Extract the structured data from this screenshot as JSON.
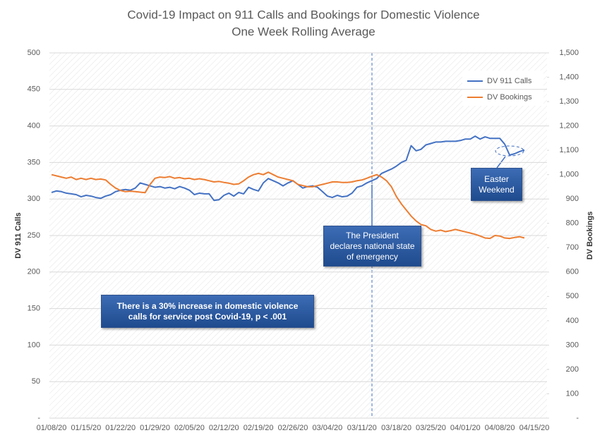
{
  "chart_data": {
    "type": "line",
    "title": "Covid-19 Impact on 911 Calls and Bookings for Domestic Violence",
    "subtitle": "One Week Rolling Average",
    "y_label": "DV 911 Calls",
    "y2_label": "DV Bookings",
    "categories": [
      "01/08/20",
      null,
      null,
      null,
      null,
      null,
      null,
      "01/15/20",
      null,
      null,
      null,
      null,
      null,
      null,
      "01/22/20",
      null,
      null,
      null,
      null,
      null,
      null,
      "01/29/20",
      null,
      null,
      null,
      null,
      null,
      null,
      "02/05/20",
      null,
      null,
      null,
      null,
      null,
      null,
      "02/12/20",
      null,
      null,
      null,
      null,
      null,
      null,
      "02/19/20",
      null,
      null,
      null,
      null,
      null,
      null,
      "02/26/20",
      null,
      null,
      null,
      null,
      null,
      null,
      "03/04/20",
      null,
      null,
      null,
      null,
      null,
      null,
      "03/11/20",
      null,
      null,
      null,
      null,
      null,
      null,
      "03/18/20",
      null,
      null,
      null,
      null,
      null,
      null,
      "03/25/20",
      null,
      null,
      null,
      null,
      null,
      null,
      "04/01/20",
      null,
      null,
      null,
      null,
      null,
      null,
      "04/08/20",
      null,
      null,
      null,
      null,
      null,
      null,
      "04/15/20"
    ],
    "series": [
      {
        "name": "DV 911 Calls",
        "color": "#4472c4",
        "axis": "y",
        "values": [
          309,
          311,
          310,
          308,
          307,
          306,
          303,
          305,
          304,
          302,
          301,
          304,
          306,
          310,
          312,
          313,
          312,
          315,
          322,
          320,
          318,
          316,
          317,
          315,
          316,
          314,
          317,
          315,
          312,
          306,
          308,
          307,
          307,
          298,
          299,
          305,
          308,
          304,
          309,
          307,
          316,
          313,
          311,
          322,
          328,
          325,
          322,
          318,
          322,
          325,
          320,
          315,
          317,
          318,
          316,
          310,
          304,
          302,
          305,
          303,
          304,
          308,
          316,
          318,
          322,
          325,
          328,
          335,
          338,
          341,
          345,
          350,
          353,
          373,
          366,
          368,
          374,
          376,
          378,
          378,
          379,
          379,
          379,
          380,
          382,
          382,
          386,
          382,
          385,
          383,
          383,
          383,
          375,
          360,
          362,
          365,
          367,
          null,
          null
        ]
      },
      {
        "name": "DV Bookings",
        "color": "#ed7d31",
        "axis": "y2",
        "values": [
          1000,
          995,
          990,
          985,
          990,
          980,
          985,
          980,
          985,
          980,
          982,
          978,
          960,
          945,
          935,
          930,
          932,
          930,
          928,
          926,
          960,
          985,
          990,
          988,
          992,
          985,
          988,
          983,
          985,
          980,
          983,
          980,
          975,
          970,
          972,
          968,
          965,
          960,
          962,
          975,
          990,
          1000,
          1005,
          1000,
          1010,
          1000,
          990,
          985,
          980,
          975,
          960,
          955,
          950,
          950,
          955,
          960,
          965,
          970,
          970,
          968,
          968,
          970,
          975,
          978,
          985,
          993,
          1000,
          990,
          975,
          950,
          910,
          880,
          855,
          830,
          810,
          795,
          790,
          775,
          768,
          772,
          766,
          770,
          775,
          770,
          765,
          760,
          755,
          748,
          740,
          738,
          750,
          748,
          740,
          738,
          742,
          745,
          740,
          null,
          null
        ]
      }
    ],
    "ylim": [
      0,
      500
    ],
    "yticks": [
      {
        "value": 0,
        "label": "-"
      },
      50,
      100,
      150,
      200,
      250,
      300,
      350,
      400,
      450,
      500
    ],
    "y2lim": [
      0,
      1500
    ],
    "y2ticks": [
      {
        "value": 0,
        "label": "-"
      },
      100,
      200,
      300,
      400,
      500,
      600,
      700,
      800,
      900,
      {
        "value": 1000,
        "label": "1,000"
      },
      {
        "value": 1100,
        "label": "1,100"
      },
      {
        "value": 1200,
        "label": "1,200"
      },
      {
        "value": 1300,
        "label": "1,300"
      },
      {
        "value": 1400,
        "label": "1,400"
      },
      {
        "value": 1500,
        "label": "1,500"
      }
    ],
    "grid": true,
    "legend": "upper-right",
    "annotations": [
      "The President declares national state of emergency",
      "There is a 30% increase in domestic violence calls for service post Covid-19,  p < .001",
      "Easter Weekend"
    ]
  }
}
